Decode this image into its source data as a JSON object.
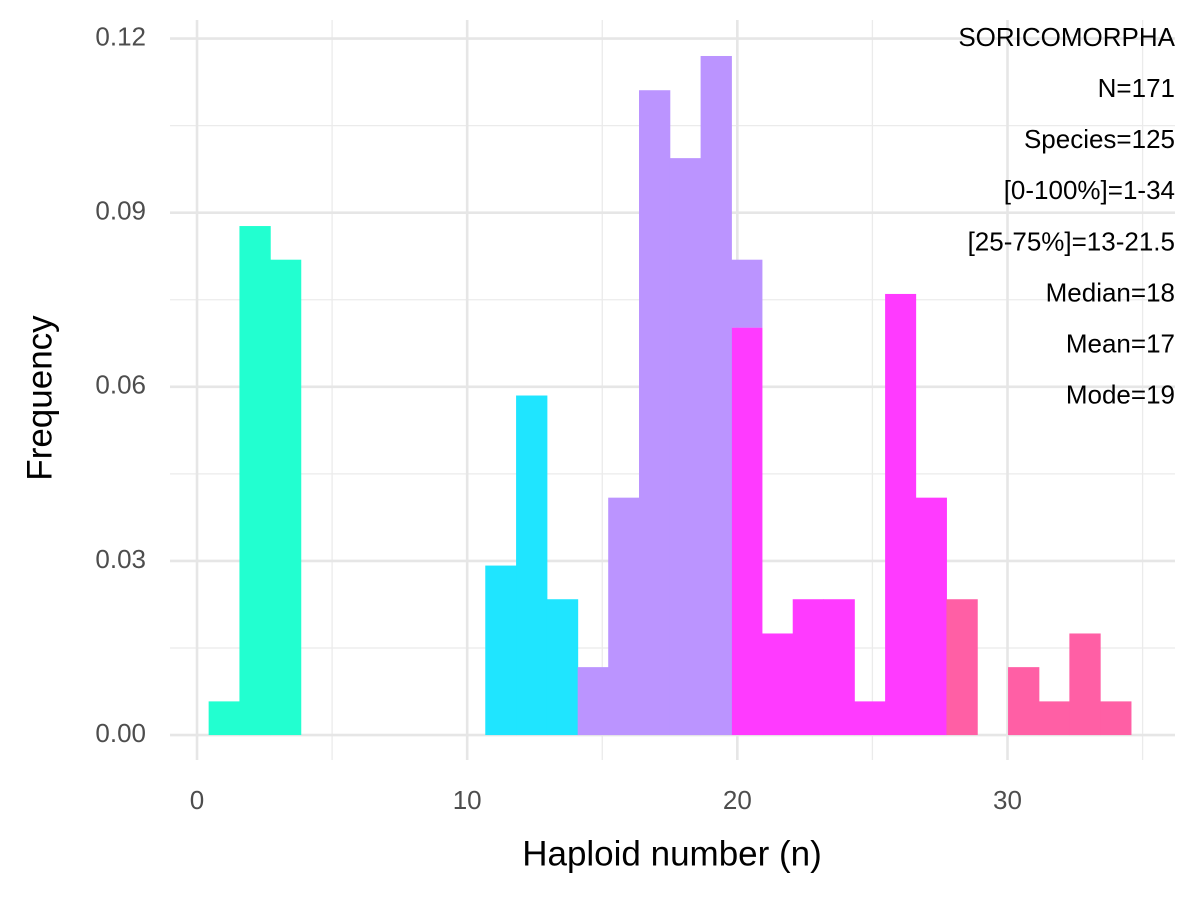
{
  "chart_data": {
    "type": "histogram",
    "xlabel": "Haploid number (n)",
    "ylabel": "Frequency",
    "annotations": [
      "SORICOMORPHA",
      "N=171",
      "Species=125",
      "[0-100%]=1-34",
      "[25-75%]=13-21.5",
      "Median=18",
      "Mean=17",
      "Mode=19"
    ],
    "bins": [
      0.43,
      1.57,
      2.71,
      3.84,
      4.98,
      6.12,
      7.26,
      8.4,
      9.53,
      10.67,
      11.81,
      12.95,
      14.09,
      15.22,
      16.36,
      17.5,
      18.64,
      19.78,
      20.91,
      22.05,
      23.19,
      24.33,
      25.47,
      26.6,
      27.74,
      28.88,
      30.02,
      31.16,
      32.29,
      33.43,
      34.57
    ],
    "series": [
      {
        "color": "#22ffd0",
        "values": [
          0.0058,
          0.0877,
          0.0819,
          null,
          null,
          null,
          null,
          null,
          null,
          null,
          null,
          null,
          null,
          null,
          null,
          null,
          null,
          null,
          null,
          null,
          null,
          null,
          null,
          null,
          null,
          null,
          null,
          null,
          null,
          null
        ]
      },
      {
        "color": "#1fe5ff",
        "values": [
          null,
          null,
          null,
          null,
          null,
          null,
          null,
          null,
          null,
          0.0292,
          0.0585,
          0.0234,
          null,
          null,
          null,
          null,
          null,
          null,
          null,
          null,
          null,
          null,
          null,
          null,
          null,
          null,
          null,
          null,
          null,
          null
        ]
      },
      {
        "color": "#ff3aff",
        "values": [
          null,
          null,
          null,
          null,
          null,
          null,
          null,
          null,
          null,
          null,
          null,
          null,
          null,
          null,
          null,
          null,
          null,
          0.0702,
          0.0175,
          0.0234,
          0.0234,
          0.0058,
          0.076,
          0.0409,
          null,
          null,
          null,
          null,
          null,
          null
        ]
      },
      {
        "color": "#bb94ff",
        "values": [
          null,
          null,
          null,
          null,
          null,
          null,
          null,
          null,
          null,
          null,
          null,
          null,
          0.0117,
          0.0409,
          0.1111,
          0.0994,
          0.117,
          0.0117,
          null,
          null,
          null,
          null,
          null,
          null,
          null,
          null,
          null,
          null,
          null,
          null
        ]
      },
      {
        "color": "#ff5fa5",
        "values": [
          null,
          null,
          null,
          null,
          null,
          null,
          null,
          null,
          null,
          null,
          null,
          null,
          null,
          null,
          null,
          null,
          null,
          null,
          null,
          null,
          null,
          null,
          null,
          null,
          0.0234,
          null,
          0.0117,
          0.0058,
          0.0175,
          0.0058
        ]
      }
    ],
    "xlim": [
      -1,
      36.2
    ],
    "ylim": [
      -0.0043,
      0.1232
    ],
    "xticks": [
      0,
      10,
      20,
      30
    ],
    "yticks": [
      {
        "value": 0,
        "label": "0.00"
      },
      {
        "value": 0.03,
        "label": "0.03"
      },
      {
        "value": 0.06,
        "label": "0.06"
      },
      {
        "value": 0.09,
        "label": "0.09"
      },
      {
        "value": 0.12,
        "label": "0.12"
      }
    ],
    "grid": true
  }
}
